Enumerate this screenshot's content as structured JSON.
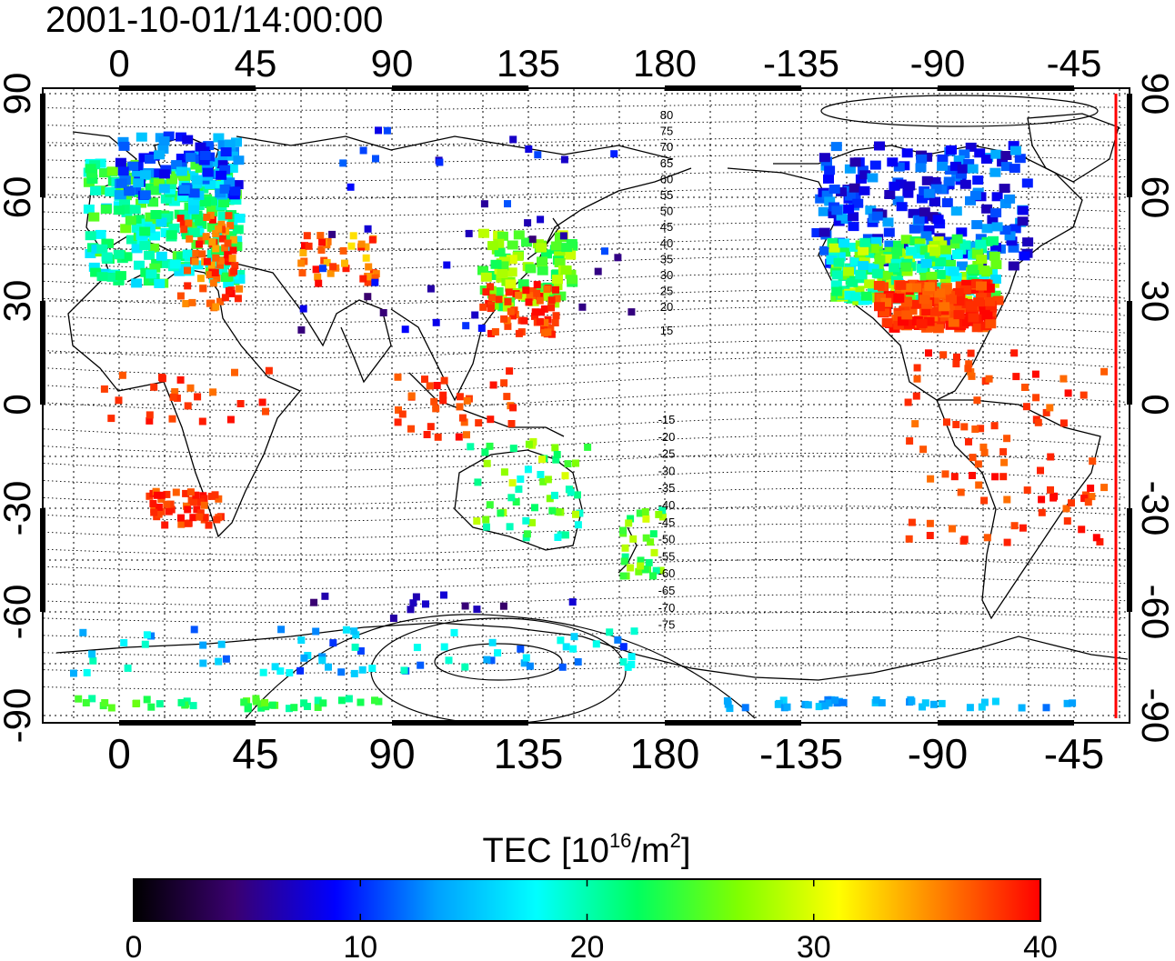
{
  "timestamp": "2001-10-01/14:00:00",
  "axes": {
    "top_lon_ticks": [
      "0",
      "45",
      "90",
      "135",
      "180",
      "-135",
      "-90",
      "-45"
    ],
    "bottom_lon_ticks": [
      "0",
      "45",
      "90",
      "135",
      "180",
      "-135",
      "-90",
      "-45"
    ],
    "left_lat_ticks": [
      "90",
      "60",
      "30",
      "0",
      "-30",
      "-60",
      "-90"
    ],
    "right_lat_ticks": [
      "90",
      "60",
      "30",
      "0",
      "-30",
      "-60",
      "-90"
    ]
  },
  "contour_labels": {
    "north": [
      "80",
      "75",
      "70",
      "65",
      "60",
      "55",
      "50",
      "45",
      "40",
      "35",
      "30",
      "25",
      "20",
      "15"
    ],
    "south": [
      "-15",
      "-20",
      "-25",
      "-30",
      "-35",
      "-40",
      "-45",
      "-50",
      "-55",
      "-60",
      "-65",
      "-70",
      "-75"
    ]
  },
  "colorbar": {
    "title_main": "TEC  [10",
    "title_sup1": "16",
    "title_mid": "/m",
    "title_sup2": "2",
    "title_end": "]",
    "tick_labels": [
      "0",
      "10",
      "20",
      "30",
      "40"
    ],
    "min": 0,
    "max": 40,
    "colors": [
      "#000000",
      "#3a0070",
      "#0000ff",
      "#00a0ff",
      "#00ffff",
      "#00ff60",
      "#80ff00",
      "#ffff00",
      "#ff8000",
      "#ff0000"
    ]
  },
  "marker_color": "#ff0000"
}
